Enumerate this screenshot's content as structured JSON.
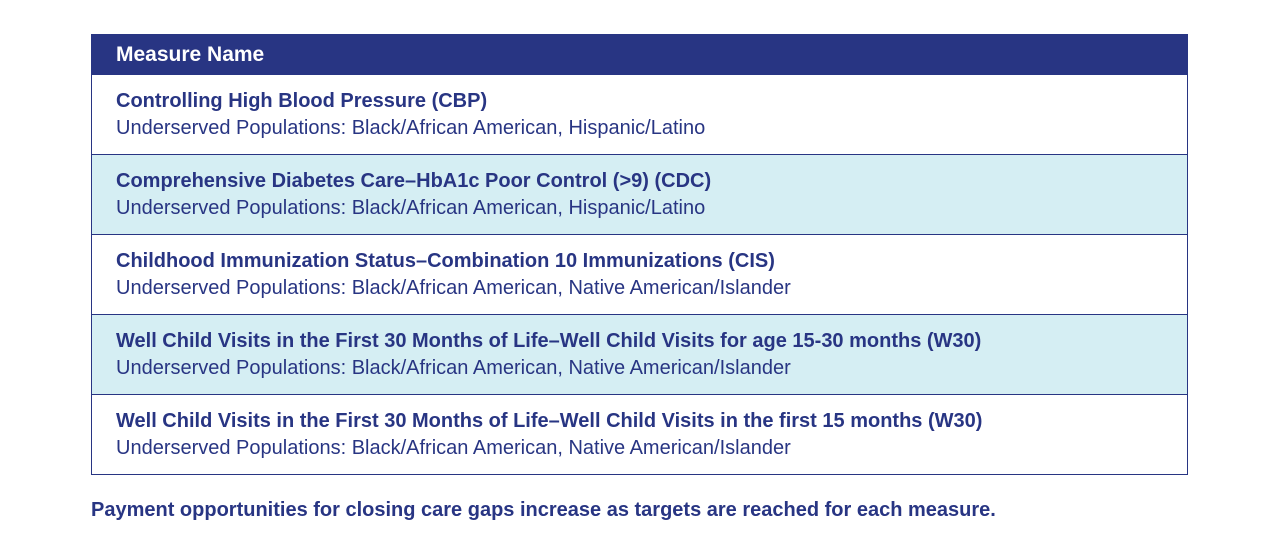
{
  "table": {
    "header": "Measure Name",
    "rows": [
      {
        "title": "Controlling High Blood Pressure (CBP)",
        "populations": "Underserved Populations: Black/African American, Hispanic/Latino"
      },
      {
        "title": "Comprehensive Diabetes Care–HbA1c Poor Control (>9) (CDC)",
        "populations": "Underserved Populations: Black/African American, Hispanic/Latino"
      },
      {
        "title": "Childhood Immunization Status–Combination 10 Immunizations (CIS)",
        "populations": "Underserved Populations: Black/African American, Native American/Islander"
      },
      {
        "title": "Well Child Visits in the First 30 Months of Life–Well Child Visits for age 15-30 months (W30)",
        "populations": "Underserved Populations: Black/African American, Native American/Islander"
      },
      {
        "title": "Well Child Visits in the First 30 Months of Life–Well Child Visits in the first 15 months (W30)",
        "populations": "Underserved Populations: Black/African American, Native American/Islander"
      }
    ]
  },
  "footnote": "Payment opportunities for closing care gaps increase as targets are reached for each measure.",
  "colors": {
    "navy": "#283583",
    "row_shade": "#d5eef3"
  }
}
